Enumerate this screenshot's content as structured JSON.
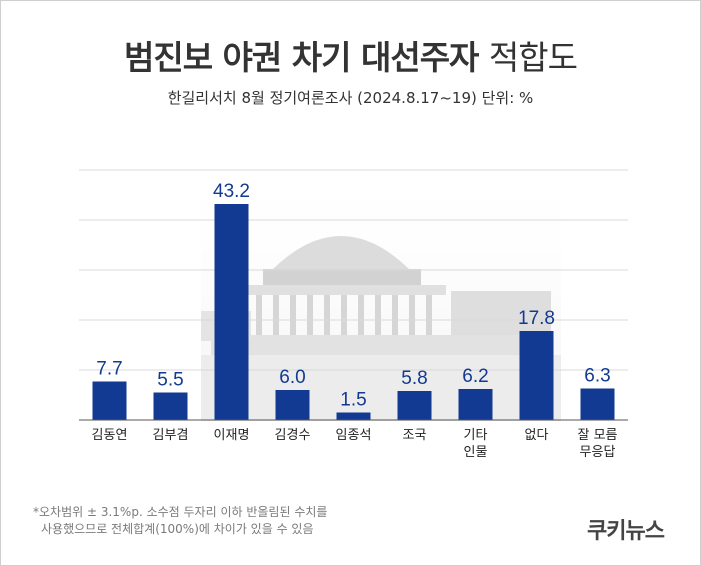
{
  "title": {
    "main": "범진보 야권 차기 대선주자",
    "suffix": "적합도"
  },
  "subtitle": "한길리서치 8월 정기여론조사 (2024.8.17~19) 단위: %",
  "footnote": {
    "line1": "*오차범위 ± 3.1%p. 소수점 두자리 이하 반올림된 수치를",
    "line2": "사용했으므로 전체합계(100%)에 차이가 있을 수 있음"
  },
  "brand": "쿠키뉴스",
  "colors": {
    "bar": "#123a92",
    "value_label": "#123a92",
    "grid": "#d9d9d9",
    "axis": "#555555"
  },
  "chart_data": {
    "type": "bar",
    "title": "범진보 야권 차기 대선주자 적합도",
    "subtitle": "한길리서치 8월 정기여론조사 (2024.8.17~19) 단위: %",
    "categories": [
      [
        "김동연"
      ],
      [
        "김부겸"
      ],
      [
        "이재명"
      ],
      [
        "김경수"
      ],
      [
        "임종석"
      ],
      [
        "조국"
      ],
      [
        "기타",
        "인물"
      ],
      [
        "없다"
      ],
      [
        "잘 모름",
        "무응답"
      ]
    ],
    "values": [
      7.7,
      5.5,
      43.2,
      6.0,
      1.5,
      5.8,
      6.2,
      17.8,
      6.3
    ],
    "value_labels": [
      "7.7",
      "5.5",
      "43.2",
      "6.0",
      "1.5",
      "5.8",
      "6.2",
      "17.8",
      "6.3"
    ],
    "ylim": [
      0,
      50
    ],
    "grid": true,
    "legend": "none"
  }
}
